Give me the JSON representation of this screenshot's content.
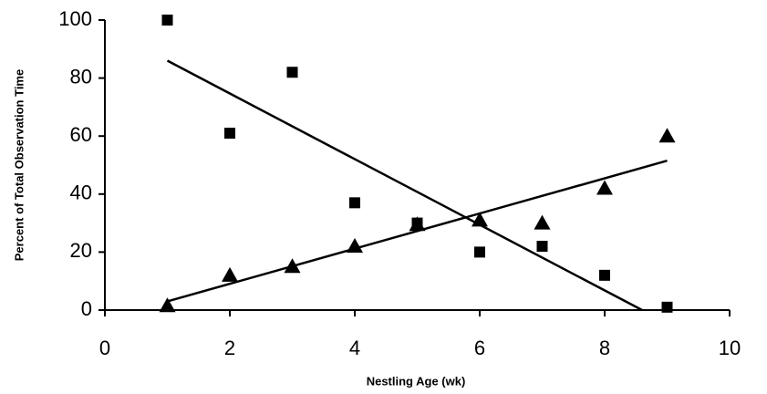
{
  "chart_data": {
    "type": "scatter",
    "xlabel": "Nestling Age (wk)",
    "ylabel": "Percent of Total Observation Time",
    "xlim": [
      0,
      10
    ],
    "xticks": [
      0,
      2,
      4,
      6,
      8,
      10
    ],
    "ylim": [
      0,
      100
    ],
    "yticks": [
      0,
      20,
      40,
      60,
      80,
      100
    ],
    "series": [
      {
        "marker": "square",
        "color": "#000000",
        "x": [
          1,
          2,
          3,
          4,
          5,
          6,
          7,
          8,
          9
        ],
        "values": [
          100,
          61,
          82,
          37,
          30,
          20,
          22,
          12,
          1
        ]
      },
      {
        "marker": "triangle",
        "color": "#000000",
        "x": [
          1,
          2,
          3,
          4,
          5,
          6,
          7,
          8,
          9
        ],
        "values": [
          1.5,
          12,
          15,
          22,
          29.5,
          31,
          30,
          42,
          60
        ]
      }
    ],
    "trendlines": [
      {
        "color": "#000000",
        "x": [
          1,
          8.6
        ],
        "values": [
          86,
          0
        ]
      },
      {
        "color": "#000000",
        "x": [
          1,
          9
        ],
        "values": [
          3,
          51.5
        ]
      }
    ]
  }
}
